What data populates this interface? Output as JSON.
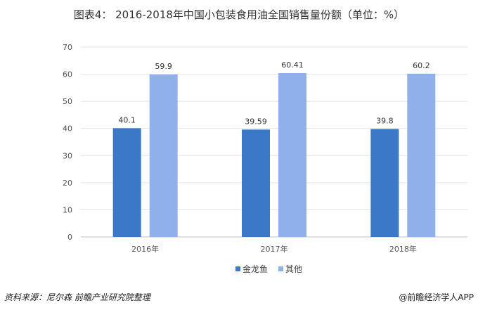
{
  "title": "图表4：  2016-2018年中国小包装食用油全国销售量份额（单位：%）",
  "source": "资料来源：尼尔森 前瞻产业研究院整理",
  "credit": "@前瞻经济学人APP",
  "chart_data": {
    "type": "bar",
    "title": "2016-2018年中国小包装食用油全国销售量份额（单位：%）",
    "categories": [
      "2016年",
      "2017年",
      "2018年"
    ],
    "series": [
      {
        "name": "金龙鱼",
        "values": [
          40.1,
          39.59,
          39.8
        ],
        "labels": [
          "40.1",
          "39.59",
          "39.8"
        ],
        "color": "#3b78c8"
      },
      {
        "name": "其他",
        "values": [
          59.9,
          60.41,
          60.2
        ],
        "labels": [
          "59.9",
          "60.41",
          "60.2"
        ],
        "color": "#8fb0ea"
      }
    ],
    "ylim": [
      0,
      70
    ],
    "yticks": [
      0,
      10,
      20,
      30,
      40,
      50,
      60,
      70
    ],
    "grid": true,
    "legend": "bottom"
  }
}
